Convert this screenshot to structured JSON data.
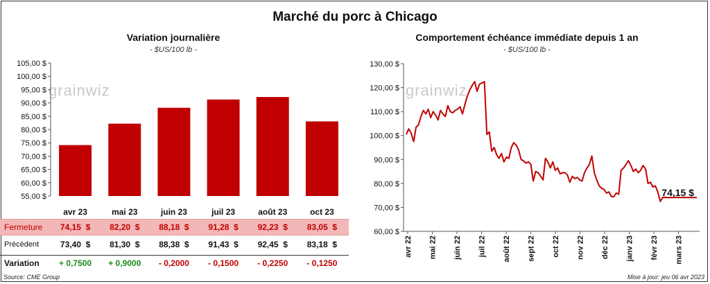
{
  "title": "Marché du porc à Chicago",
  "logo_text": "grainwiz",
  "left_panel": {
    "title": "Variation  journalière",
    "subtitle": "- $US/100 lb -"
  },
  "right_panel": {
    "title": "Comportement  échéance immédiate depuis 1 an",
    "subtitle": "- $US/100 lb -",
    "last_label": "74,15 $"
  },
  "table": {
    "row_labels": {
      "close": "Fermeture",
      "prev": "Précédent",
      "change": "Variation"
    },
    "close": [
      "74,15  $",
      "82,20  $",
      "88,18  $",
      "91,28  $",
      "92,23  $",
      "83,05  $"
    ],
    "prev": [
      "73,40  $",
      "81,30  $",
      "88,38  $",
      "91,43  $",
      "92,45  $",
      "83,18  $"
    ],
    "change": [
      "+ 0,7500",
      "+ 0,9000",
      "- 0,2000",
      "- 0,1500",
      "- 0,2250",
      "- 0,1250"
    ],
    "change_sign": [
      "pos",
      "pos",
      "neg",
      "neg",
      "neg",
      "neg"
    ]
  },
  "footer": {
    "source": "Source: CME Group",
    "updated": "Mise à jour: jeu 06 avr 2023"
  },
  "colors": {
    "bar": "#c00000",
    "line": "#c00000",
    "close_row_bg": "#f4b7b7",
    "positive": "#1a8a1a",
    "negative": "#c00000"
  },
  "chart_data": [
    {
      "type": "bar",
      "title": "Variation  journalière",
      "subtitle": "- $US/100 lb -",
      "categories": [
        "avr 23",
        "mai 23",
        "juin 23",
        "juil 23",
        "août 23",
        "oct 23"
      ],
      "values": [
        74.15,
        82.2,
        88.18,
        91.28,
        92.23,
        83.05
      ],
      "ylim": [
        55,
        105
      ],
      "yticks": [
        55,
        60,
        65,
        70,
        75,
        80,
        85,
        90,
        95,
        100,
        105
      ],
      "ytick_labels": [
        "55,00 $",
        "60,00 $",
        "65,00 $",
        "70,00 $",
        "75,00 $",
        "80,00 $",
        "85,00 $",
        "90,00 $",
        "95,00 $",
        "100,00 $",
        "105,00 $"
      ],
      "grid": false
    },
    {
      "type": "line",
      "title": "Comportement  échéance immédiate depuis 1 an",
      "subtitle": "- $US/100 lb -",
      "ylim": [
        60,
        130
      ],
      "yticks": [
        60,
        70,
        80,
        90,
        100,
        110,
        120,
        130
      ],
      "ytick_labels": [
        "60,00 $",
        "70,00 $",
        "80,00 $",
        "90,00 $",
        "100,00 $",
        "110,00 $",
        "120,00 $",
        "130,00 $"
      ],
      "xtick_labels": [
        "avr 22",
        "mai 22",
        "juin 22",
        "juil 22",
        "août 22",
        "sept 22",
        "oct 22",
        "nov 22",
        "déc 22",
        "janv 23",
        "févr 23",
        "mars 23"
      ],
      "grid": false,
      "x": [
        0,
        1,
        2,
        3,
        4,
        5,
        6,
        7,
        8,
        9,
        10,
        11,
        12,
        13,
        14,
        15,
        16,
        17,
        18,
        19,
        20,
        21,
        22,
        23,
        24,
        25,
        26,
        27,
        28,
        29,
        30,
        31,
        32,
        33,
        34,
        35,
        36,
        37,
        38,
        39,
        40,
        41,
        42,
        43,
        44,
        45,
        46,
        47,
        48,
        49,
        50,
        51,
        52,
        53,
        54,
        55,
        56,
        57,
        58,
        59,
        60,
        61,
        62,
        63,
        64,
        65,
        66,
        67,
        68,
        69,
        70,
        71,
        72,
        73,
        74,
        75,
        76,
        77,
        78,
        79,
        80,
        81,
        82,
        83,
        84,
        85,
        86,
        87,
        88,
        89,
        90,
        91,
        92,
        93,
        94,
        95,
        96,
        97,
        98,
        99,
        100,
        101,
        102,
        103,
        104,
        105,
        106,
        107,
        108,
        109,
        110,
        111,
        112,
        113,
        114,
        115,
        116,
        117,
        118,
        119
      ],
      "values": [
        100.5,
        102.8,
        101.0,
        97.5,
        103.5,
        104.5,
        108.0,
        110.5,
        109.0,
        111.0,
        107.5,
        110.0,
        108.5,
        106.5,
        110.5,
        109.0,
        108.0,
        112.5,
        110.0,
        109.5,
        110.5,
        111.0,
        112.0,
        109.0,
        113.0,
        116.5,
        119.0,
        121.0,
        122.5,
        118.5,
        121.5,
        122.0,
        122.5,
        100.5,
        101.5,
        93.5,
        95.0,
        92.0,
        90.5,
        92.5,
        89.0,
        91.0,
        90.5,
        95.0,
        97.0,
        96.0,
        94.0,
        90.0,
        89.5,
        88.5,
        89.0,
        88.0,
        81.0,
        85.0,
        84.5,
        83.0,
        81.5,
        90.5,
        89.0,
        86.5,
        89.0,
        85.5,
        86.5,
        84.0,
        84.5,
        84.5,
        83.5,
        80.5,
        83.0,
        82.0,
        82.5,
        81.5,
        81.0,
        84.5,
        86.5,
        88.0,
        91.5,
        84.5,
        81.5,
        79.0,
        78.0,
        77.5,
        76.0,
        76.5,
        74.5,
        74.5,
        76.0,
        75.5,
        85.5,
        86.5,
        88.0,
        89.5,
        87.5,
        85.0,
        86.0,
        84.5,
        85.5,
        87.5,
        86.0,
        80.0,
        80.5,
        78.5,
        79.0,
        76.5,
        72.5,
        74.15,
        74.2,
        74.1,
        74.15,
        74.15,
        74.15,
        74.15,
        74.15,
        74.15,
        74.15,
        74.15,
        74.15,
        74.15,
        74.15,
        74.15
      ]
    }
  ]
}
